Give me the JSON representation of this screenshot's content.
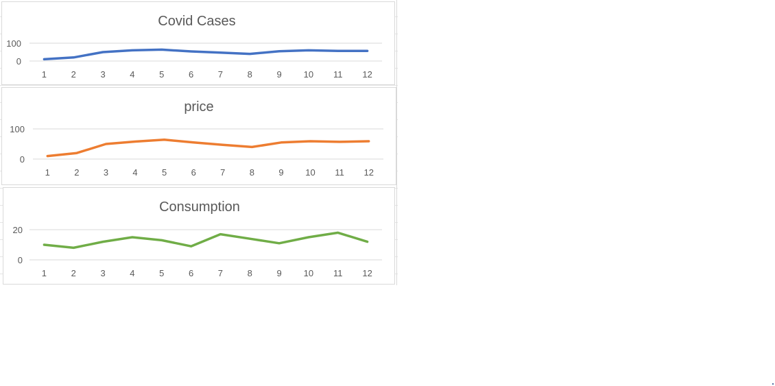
{
  "chart_data": [
    {
      "type": "line",
      "title": "Covid Cases",
      "categories": [
        "1",
        "2",
        "3",
        "4",
        "5",
        "6",
        "7",
        "8",
        "9",
        "10",
        "11",
        "12"
      ],
      "series": [
        {
          "values": [
            10,
            20,
            50,
            60,
            64,
            54,
            47,
            40,
            55,
            60,
            57,
            57
          ]
        }
      ],
      "yticks": [
        "0",
        "100"
      ],
      "ylim": [
        0,
        100
      ],
      "color": "#4472C4",
      "grid": true,
      "legend": "none"
    },
    {
      "type": "line",
      "title": "price",
      "categories": [
        "1",
        "2",
        "3",
        "4",
        "5",
        "6",
        "7",
        "8",
        "9",
        "10",
        "11",
        "12"
      ],
      "series": [
        {
          "values": [
            10,
            20,
            50,
            58,
            64,
            55,
            47,
            40,
            55,
            59,
            57,
            59
          ]
        }
      ],
      "yticks": [
        "0",
        "100"
      ],
      "ylim": [
        0,
        100
      ],
      "color": "#ED7D31",
      "grid": true,
      "legend": "none"
    },
    {
      "type": "line",
      "title": "Consumption",
      "categories": [
        "1",
        "2",
        "3",
        "4",
        "5",
        "6",
        "7",
        "8",
        "9",
        "10",
        "11",
        "12"
      ],
      "series": [
        {
          "values": [
            10,
            8,
            12,
            15,
            13,
            9,
            17,
            14,
            11,
            15,
            18,
            12
          ]
        }
      ],
      "yticks": [
        "0",
        "20"
      ],
      "ylim": [
        0,
        20
      ],
      "color": "#70AD47",
      "grid": true,
      "legend": "none"
    }
  ]
}
